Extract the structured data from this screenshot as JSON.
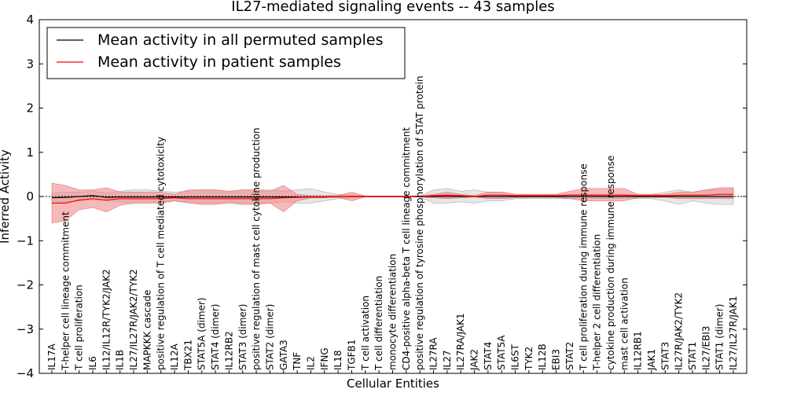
{
  "chart_data": {
    "type": "line",
    "title": "IL27-mediated signaling events -- 43 samples",
    "xlabel": "Cellular Entities",
    "ylabel": "Inferred Activity",
    "ylim": [
      -4,
      4
    ],
    "yticks": [
      -4,
      -3,
      -2,
      -1,
      0,
      1,
      2,
      3,
      4
    ],
    "ytick_labels": [
      "−4",
      "−3",
      "−2",
      "−1",
      "0",
      "1",
      "2",
      "3",
      "4"
    ],
    "legend": {
      "placement": "top-left",
      "entries": [
        {
          "label": "Mean activity in all permuted samples",
          "color": "#000000"
        },
        {
          "label": "Mean activity in patient samples",
          "color": "#ff0000"
        }
      ]
    },
    "categories": [
      "IL17A",
      "T-helper cell lineage commitment",
      "T cell proliferation",
      "IL6",
      "IL12/IL12R/TYK2/JAK2",
      "IL1B",
      "IL27/IL27R/JAK2/TYK2",
      "MAPKKK cascade",
      "positive regulation of T cell mediated cytotoxicity",
      "IL12A",
      "TBX21",
      "STAT5A (dimer)",
      "STAT4 (dimer)",
      "IL12RB2",
      "STAT3 (dimer)",
      "positive regulation of mast cell cytokine production",
      "STAT2 (dimer)",
      "GATA3",
      "TNF",
      "IL2",
      "IFNG",
      "IL18",
      "TGFB1",
      "T cell activation",
      "T cell differentiation",
      "monocyte differentiation",
      "CD4-positive alpha-beta T cell lineage commitment",
      "positive regulation of tyrosine phosphorylation of STAT protein",
      "IL27RA",
      "IL27",
      "IL27RA/JAK1",
      "JAK2",
      "STAT4",
      "STAT5A",
      "IL6ST",
      "TYK2",
      "IL12B",
      "EBI3",
      "STAT2",
      "T cell proliferation during immune response",
      "T-helper 2 cell differentiation",
      "cytokine production during immune response",
      "mast cell activation",
      "IL12RB1",
      "JAK1",
      "STAT3",
      "IL27R/JAK2/TYK2",
      "STAT1",
      "IL27/EBI3",
      "STAT1 (dimer)",
      "IL27/IL27R/JAK1"
    ],
    "series": [
      {
        "name": "Mean activity in all permuted samples",
        "color": "#000000",
        "values": [
          -0.03,
          -0.02,
          0.0,
          0.02,
          -0.02,
          -0.01,
          -0.01,
          -0.01,
          -0.01,
          -0.01,
          -0.01,
          -0.01,
          -0.01,
          -0.01,
          -0.01,
          -0.01,
          -0.01,
          -0.01,
          -0.01,
          -0.01,
          -0.01,
          0.0,
          0.0,
          0.0,
          0.0,
          0.0,
          0.0,
          0.0,
          0.0,
          0.0,
          0.0,
          0.0,
          0.0,
          0.0,
          0.0,
          0.0,
          0.0,
          0.0,
          0.0,
          0.0,
          0.0,
          0.0,
          0.0,
          0.0,
          0.0,
          0.0,
          0.0,
          0.0,
          0.0,
          0.0,
          0.0
        ],
        "lower": [
          -0.1,
          -0.12,
          -0.1,
          -0.08,
          -0.1,
          -0.12,
          -0.15,
          -0.15,
          -0.12,
          -0.1,
          -0.12,
          -0.15,
          -0.15,
          -0.12,
          -0.15,
          -0.15,
          -0.15,
          -0.12,
          -0.15,
          -0.15,
          -0.1,
          -0.05,
          -0.03,
          -0.01,
          -0.01,
          -0.01,
          -0.01,
          -0.01,
          -0.15,
          -0.15,
          -0.12,
          -0.15,
          -0.1,
          -0.1,
          -0.05,
          -0.05,
          -0.05,
          -0.05,
          -0.05,
          -0.05,
          -0.05,
          -0.05,
          -0.05,
          -0.05,
          -0.05,
          -0.1,
          -0.18,
          -0.1,
          -0.15,
          -0.18,
          -0.18
        ],
        "upper": [
          0.08,
          0.1,
          0.1,
          0.12,
          0.08,
          0.12,
          0.15,
          0.15,
          0.12,
          0.1,
          0.12,
          0.15,
          0.15,
          0.12,
          0.15,
          0.15,
          0.15,
          0.12,
          0.15,
          0.18,
          0.1,
          0.05,
          0.03,
          0.01,
          0.01,
          0.01,
          0.01,
          0.01,
          0.15,
          0.18,
          0.12,
          0.15,
          0.1,
          0.1,
          0.05,
          0.05,
          0.05,
          0.05,
          0.05,
          0.05,
          0.05,
          0.05,
          0.05,
          0.05,
          0.05,
          0.1,
          0.15,
          0.1,
          0.15,
          0.15,
          0.18
        ]
      },
      {
        "name": "Mean activity in patient samples",
        "color": "#ff0000",
        "values": [
          -0.15,
          -0.15,
          -0.08,
          -0.05,
          -0.08,
          -0.05,
          -0.05,
          -0.05,
          -0.05,
          -0.03,
          -0.05,
          -0.05,
          -0.05,
          -0.05,
          -0.05,
          -0.05,
          -0.05,
          -0.03,
          -0.02,
          -0.01,
          -0.01,
          0.0,
          0.0,
          0.0,
          0.0,
          0.0,
          0.0,
          0.0,
          0.02,
          0.03,
          0.02,
          0.0,
          0.03,
          0.03,
          0.02,
          0.02,
          0.02,
          0.02,
          0.03,
          0.03,
          0.03,
          0.03,
          0.03,
          0.02,
          0.02,
          0.02,
          0.03,
          0.03,
          0.03,
          0.05,
          0.05
        ],
        "lower": [
          -0.6,
          -0.55,
          -0.3,
          -0.25,
          -0.35,
          -0.2,
          -0.15,
          -0.15,
          -0.15,
          -0.1,
          -0.15,
          -0.18,
          -0.18,
          -0.15,
          -0.18,
          -0.18,
          -0.15,
          -0.35,
          -0.1,
          -0.03,
          -0.03,
          -0.02,
          -0.1,
          -0.01,
          -0.01,
          -0.01,
          -0.01,
          -0.01,
          -0.03,
          -0.05,
          -0.03,
          -0.01,
          -0.05,
          -0.05,
          -0.03,
          -0.02,
          -0.02,
          -0.02,
          -0.05,
          -0.1,
          -0.1,
          -0.1,
          -0.1,
          -0.02,
          -0.02,
          -0.02,
          -0.05,
          -0.05,
          -0.05,
          -0.05,
          -0.05
        ],
        "upper": [
          0.3,
          0.25,
          0.15,
          0.15,
          0.2,
          0.1,
          0.1,
          0.1,
          0.1,
          0.05,
          0.15,
          0.15,
          0.15,
          0.12,
          0.15,
          0.15,
          0.12,
          0.25,
          0.05,
          0.02,
          0.02,
          0.02,
          0.1,
          0.01,
          0.01,
          0.01,
          0.01,
          0.01,
          0.05,
          0.1,
          0.05,
          0.02,
          0.1,
          0.1,
          0.05,
          0.05,
          0.05,
          0.05,
          0.12,
          0.18,
          0.18,
          0.18,
          0.18,
          0.05,
          0.05,
          0.05,
          0.1,
          0.1,
          0.15,
          0.2,
          0.2
        ]
      }
    ]
  }
}
